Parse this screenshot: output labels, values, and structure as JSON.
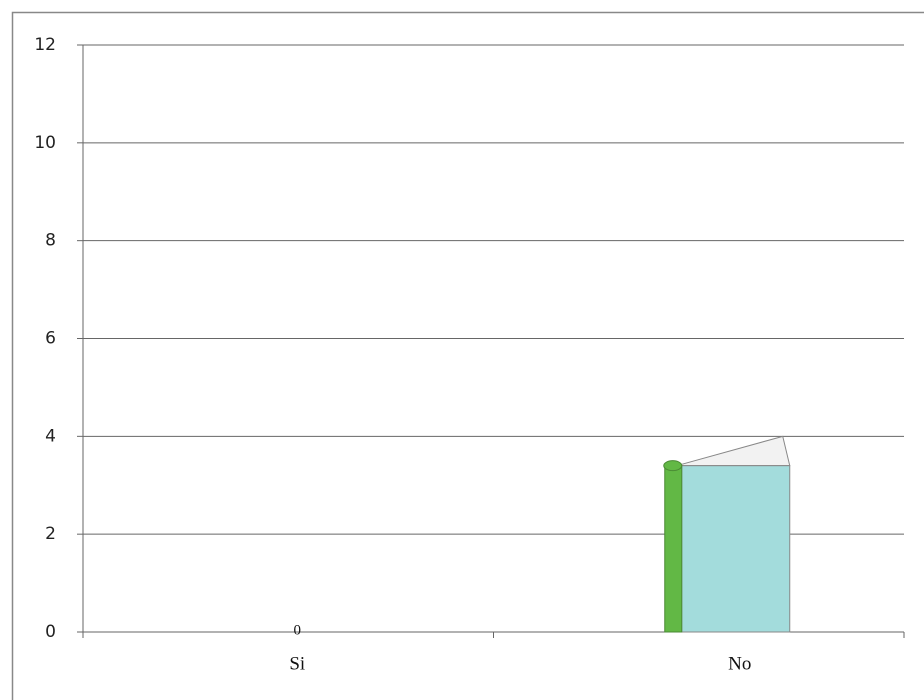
{
  "chart_data": {
    "type": "bar",
    "categories": [
      "Si",
      "No"
    ],
    "values": [
      0,
      4
    ],
    "value_labels": [
      "0",
      null
    ],
    "color": "#a3dcdc",
    "ylim": [
      0,
      12
    ],
    "yticks": [
      0,
      2,
      4,
      6,
      8,
      10,
      12
    ],
    "grid": true
  }
}
